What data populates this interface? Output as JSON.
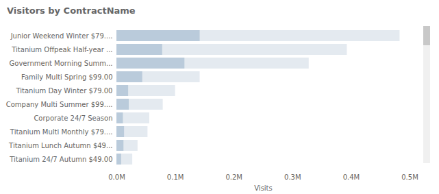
{
  "chart_data": {
    "type": "bar",
    "title": "Visitors by ContractName",
    "orientation": "horizontal",
    "stacked": false,
    "xlabel": "Visits",
    "categories": [
      "Junior Weekend Winter $79....",
      "Titanium Offpeak Half-year ...",
      "Government Morning Summ...",
      "Family Multi Spring $99.00",
      "Titanium Day Winter $79.00",
      "Company Multi Summer $99....",
      "Corporate 24/7 Season",
      "Titanium Multi Monthly $79....",
      "Titanium Lunch Autumn $49...",
      "Titanium 24/7 Autumn $49.00"
    ],
    "series": [
      {
        "color": "#e4eaf0",
        "values": [
          483000,
          393000,
          328000,
          142000,
          100000,
          79000,
          56000,
          53000,
          36000,
          27000
        ]
      },
      {
        "color": "#bacbdb",
        "values": [
          142000,
          78000,
          116000,
          44000,
          20000,
          21000,
          11000,
          13000,
          12000,
          8000
        ]
      }
    ],
    "xlim": [
      0,
      500000
    ],
    "xticks": [
      {
        "value": 0,
        "label": "0.0M"
      },
      {
        "value": 100000,
        "label": "0.1M"
      },
      {
        "value": 200000,
        "label": "0.2M"
      },
      {
        "value": 300000,
        "label": "0.3M"
      },
      {
        "value": 400000,
        "label": "0.4M"
      },
      {
        "value": 500000,
        "label": "0.5M"
      }
    ],
    "grid": false
  }
}
